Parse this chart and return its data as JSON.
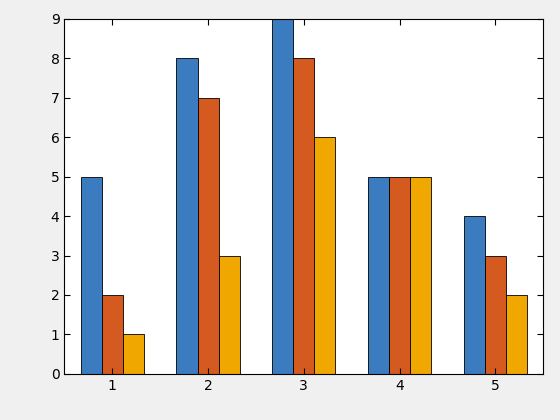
{
  "categories": [
    1,
    2,
    3,
    4,
    5
  ],
  "series": [
    [
      5,
      8,
      9,
      5,
      4
    ],
    [
      2,
      7,
      8,
      5,
      3
    ],
    [
      1,
      3,
      6,
      5,
      2
    ]
  ],
  "colors": [
    "#3b7bbf",
    "#d45a1f",
    "#f0a800"
  ],
  "ylim": [
    0,
    9
  ],
  "yticks": [
    0,
    1,
    2,
    3,
    4,
    5,
    6,
    7,
    8,
    9
  ],
  "xticks": [
    1,
    2,
    3,
    4,
    5
  ],
  "bar_width": 0.22,
  "background_color": "#f0f0f0",
  "axes_background": "#ffffff",
  "edge_color": "#000000"
}
